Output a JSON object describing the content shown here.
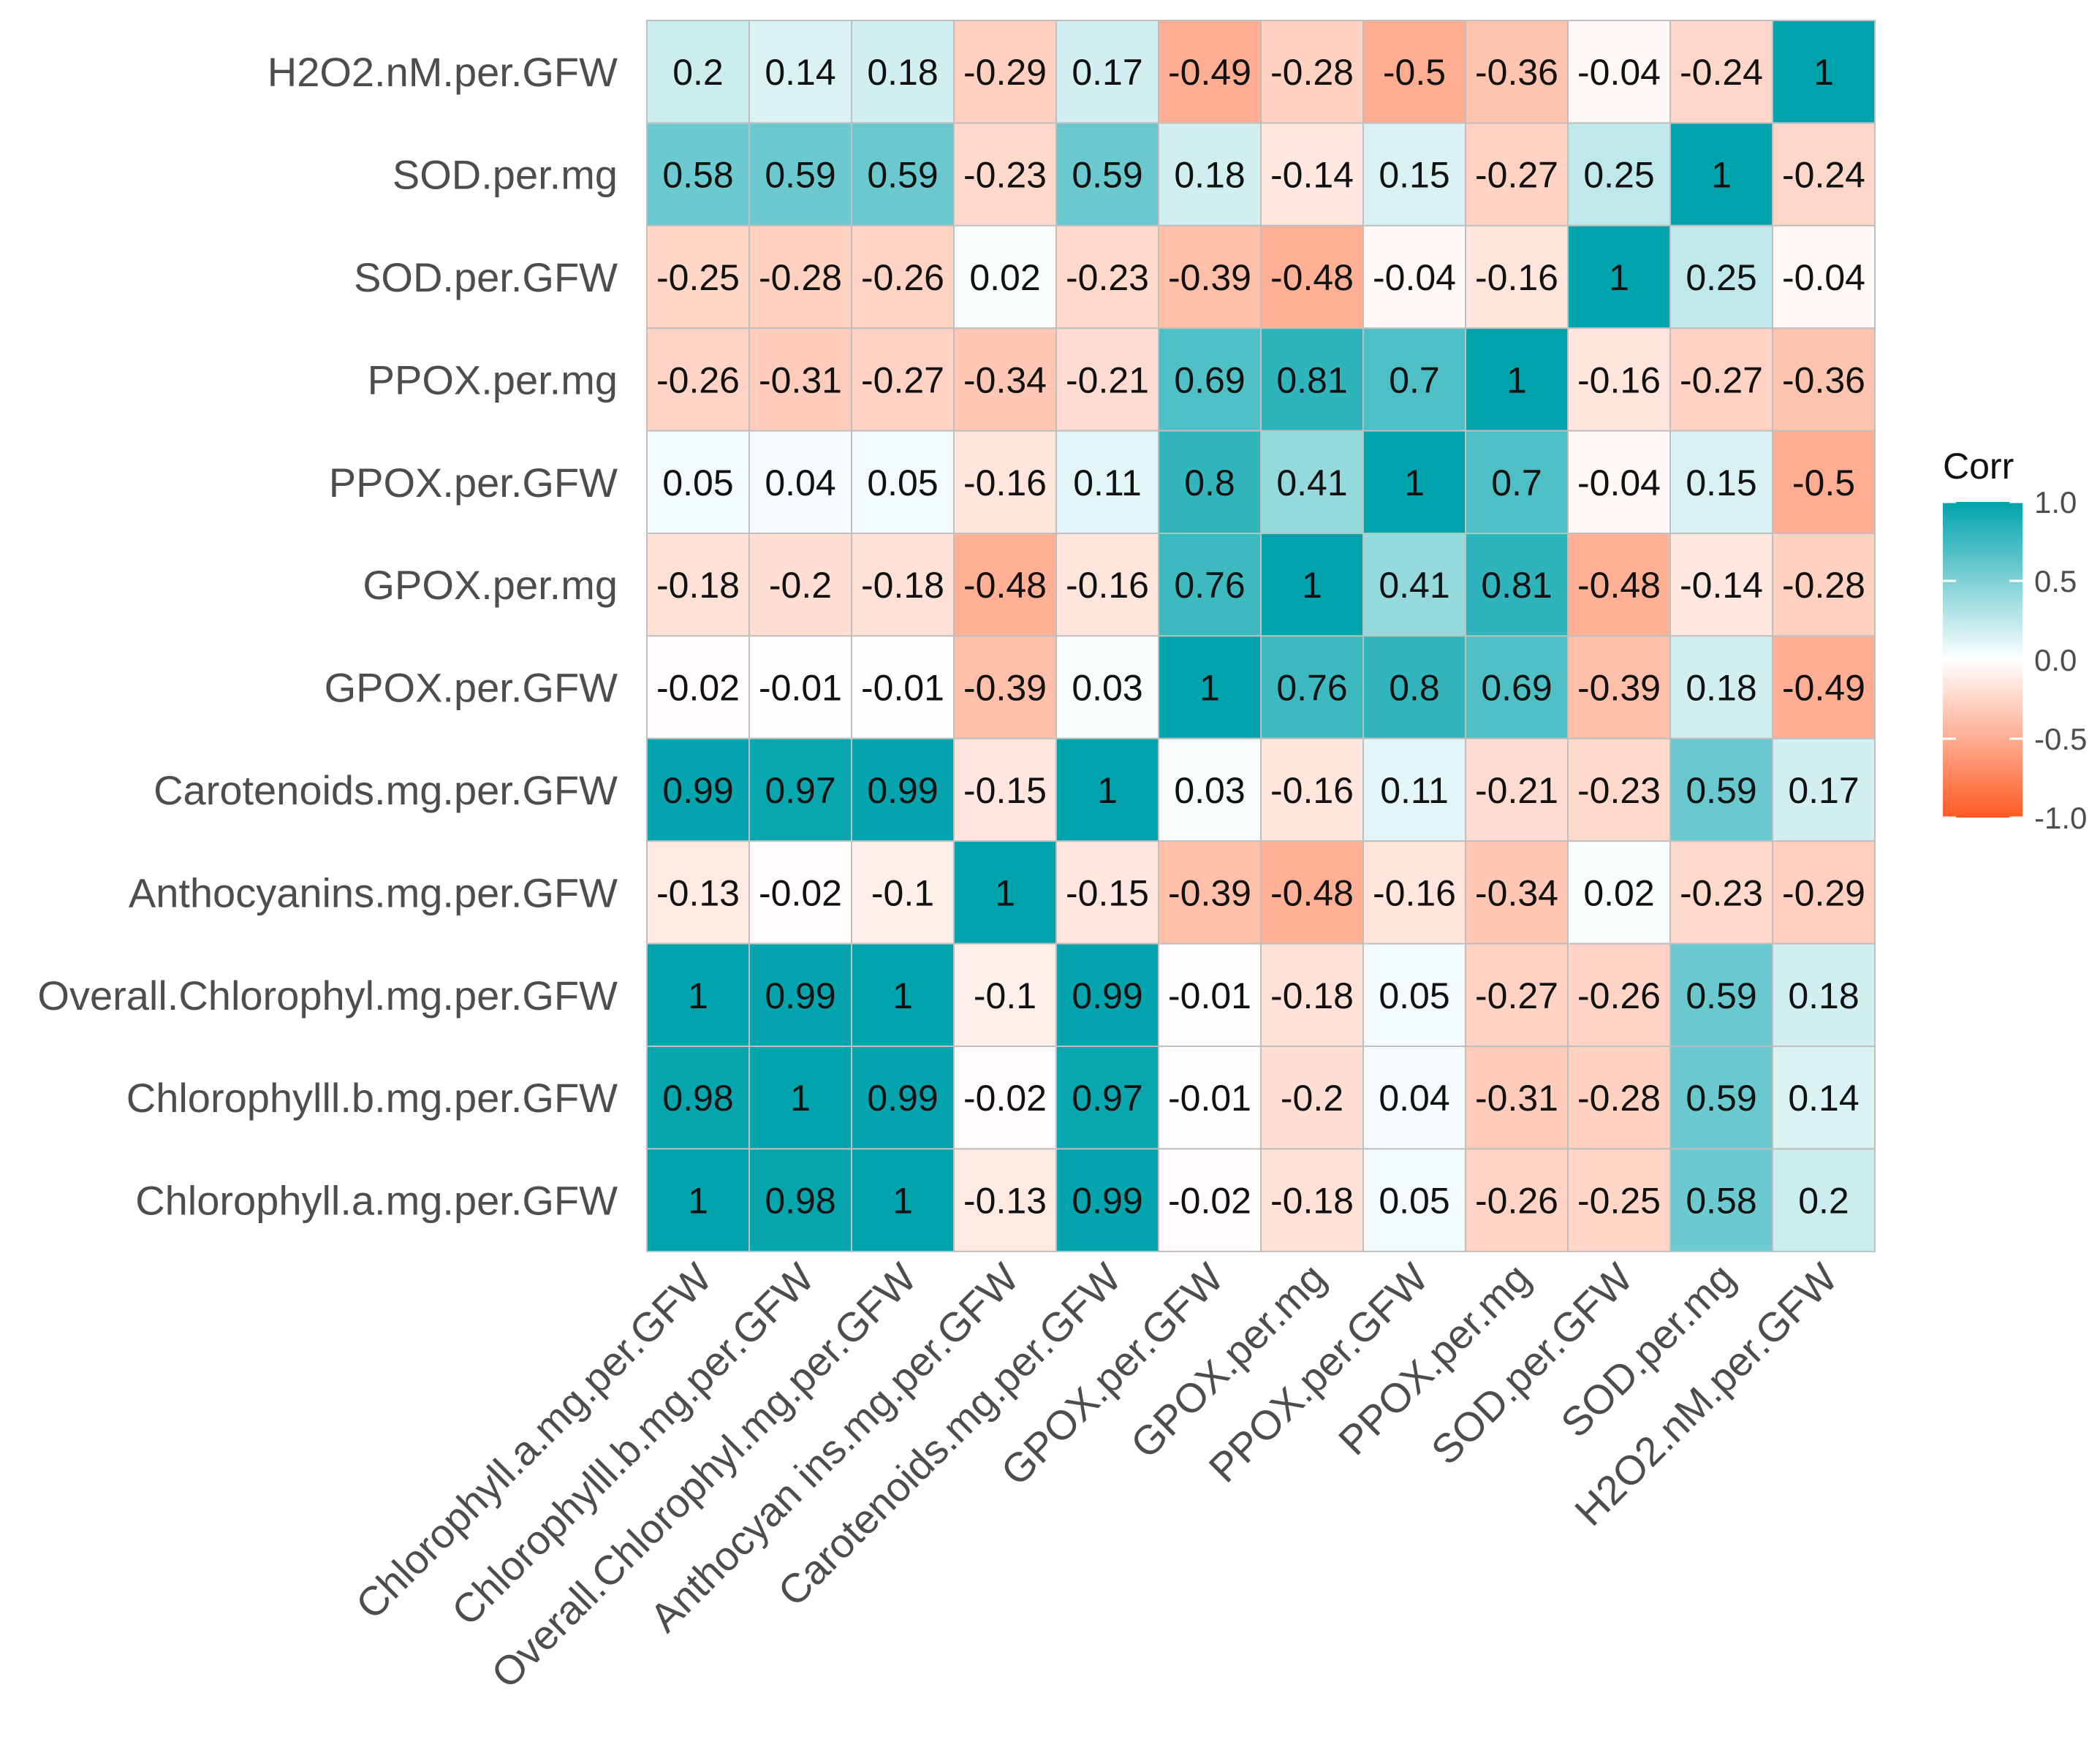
{
  "chart_data": {
    "type": "heatmap",
    "title": "",
    "xlabel": "",
    "ylabel": "",
    "variables": [
      "Chlorophyll.a.mg.per.GFW",
      "Chlorophylll.b.mg.per.GFW",
      "Overall.Chlorophyl.mg.per.GFW",
      "Anthocyanins.mg.per.GFW",
      "Carotenoids.mg.per.GFW",
      "GPOX.per.GFW",
      "GPOX.per.mg",
      "PPOX.per.GFW",
      "PPOX.per.mg",
      "SOD.per.GFW",
      "SOD.per.mg",
      "H2O2.nM.per.GFW"
    ],
    "row_labels_top_to_bottom": [
      "H2O2.nM.per.GFW",
      "SOD.per.mg",
      "SOD.per.GFW",
      "PPOX.per.mg",
      "PPOX.per.GFW",
      "GPOX.per.mg",
      "GPOX.per.GFW",
      "Carotenoids.mg.per.GFW",
      "Anthocyanins.mg.per.GFW",
      "Overall.Chlorophyl.mg.per.GFW",
      "Chlorophylll.b.mg.per.GFW",
      "Chlorophyll.a.mg.per.GFW"
    ],
    "column_labels": [
      "Chlorophyll.a.mg.per.GFW",
      "Chlorophylll.b.mg.per.GFW",
      "Overall.Chlorophyl.mg.per.GFW",
      "Anthocyan ins.mg.per.GFW",
      "Carotenoids.mg.per.GFW",
      "GPOX.per.GFW",
      "GPOX.per.mg",
      "PPOX.per.GFW",
      "PPOX.per.mg",
      "SOD.per.GFW",
      "SOD.per.mg",
      "H2O2.nM.per.GFW"
    ],
    "matrix_rows_top_to_bottom": [
      [
        0.2,
        0.14,
        0.18,
        -0.29,
        0.17,
        -0.49,
        -0.28,
        -0.5,
        -0.36,
        -0.04,
        -0.24,
        1
      ],
      [
        0.58,
        0.59,
        0.59,
        -0.23,
        0.59,
        0.18,
        -0.14,
        0.15,
        -0.27,
        0.25,
        1,
        -0.24
      ],
      [
        -0.25,
        -0.28,
        -0.26,
        0.02,
        -0.23,
        -0.39,
        -0.48,
        -0.04,
        -0.16,
        1,
        0.25,
        -0.04
      ],
      [
        -0.26,
        -0.31,
        -0.27,
        -0.34,
        -0.21,
        0.69,
        0.81,
        0.7,
        1,
        -0.16,
        -0.27,
        -0.36
      ],
      [
        0.05,
        0.04,
        0.05,
        -0.16,
        0.11,
        0.8,
        0.41,
        1,
        0.7,
        -0.04,
        0.15,
        -0.5
      ],
      [
        -0.18,
        -0.2,
        -0.18,
        -0.48,
        -0.16,
        0.76,
        1,
        0.41,
        0.81,
        -0.48,
        -0.14,
        -0.28
      ],
      [
        -0.02,
        -0.01,
        -0.01,
        -0.39,
        0.03,
        1,
        0.76,
        0.8,
        0.69,
        -0.39,
        0.18,
        -0.49
      ],
      [
        0.99,
        0.97,
        0.99,
        -0.15,
        1,
        0.03,
        -0.16,
        0.11,
        -0.21,
        -0.23,
        0.59,
        0.17
      ],
      [
        -0.13,
        -0.02,
        -0.1,
        1,
        -0.15,
        -0.39,
        -0.48,
        -0.16,
        -0.34,
        0.02,
        -0.23,
        -0.29
      ],
      [
        1,
        0.99,
        1,
        -0.1,
        0.99,
        -0.01,
        -0.18,
        0.05,
        -0.27,
        -0.26,
        0.59,
        0.18
      ],
      [
        0.98,
        1,
        0.99,
        -0.02,
        0.97,
        -0.01,
        -0.2,
        0.04,
        -0.31,
        -0.28,
        0.59,
        0.14
      ],
      [
        1,
        0.98,
        1,
        -0.13,
        0.99,
        -0.02,
        -0.18,
        0.05,
        -0.26,
        -0.25,
        0.58,
        0.2
      ]
    ],
    "color_scale": {
      "low": "#ff5a23",
      "mid": "#ffffff",
      "high": "#00a3ac",
      "range": [
        -1.0,
        1.0
      ]
    },
    "legend": {
      "title": "Corr",
      "position": "right",
      "ticks": [
        "1.0",
        "0.5",
        "0.0",
        "-0.5",
        "-1.0"
      ],
      "tick_values": [
        1.0,
        0.5,
        0.0,
        -0.5,
        -1.0
      ]
    },
    "grid": false,
    "cell_border_color": "#bfbfbf"
  }
}
